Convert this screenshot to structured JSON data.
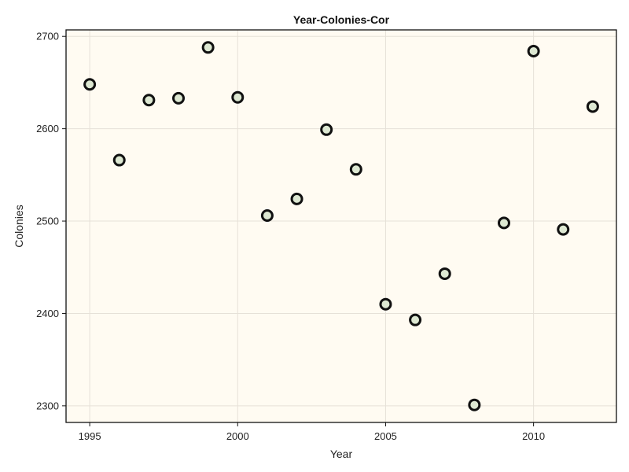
{
  "chart_data": {
    "type": "scatter",
    "title": "Year-Colonies-Cor",
    "xlabel": "Year",
    "ylabel": "Colonies",
    "xlim": [
      1994.2,
      2012.8
    ],
    "ylim": [
      2282,
      2707
    ],
    "x_ticks": [
      1995,
      2000,
      2005,
      2010
    ],
    "y_ticks": [
      2300,
      2400,
      2500,
      2600,
      2700
    ],
    "grid": true,
    "legend": "none",
    "colors": {
      "plot_background": "#fffbf2",
      "marker_fill": "#dde8d2",
      "marker_edge": "#111111",
      "grid": "#e6e1d8",
      "frame": "#111111"
    },
    "points": [
      {
        "x": 1995,
        "y": 2648
      },
      {
        "x": 1996,
        "y": 2566
      },
      {
        "x": 1997,
        "y": 2631
      },
      {
        "x": 1998,
        "y": 2633
      },
      {
        "x": 1999,
        "y": 2688
      },
      {
        "x": 2000,
        "y": 2634
      },
      {
        "x": 2001,
        "y": 2506
      },
      {
        "x": 2002,
        "y": 2524
      },
      {
        "x": 2003,
        "y": 2599
      },
      {
        "x": 2004,
        "y": 2556
      },
      {
        "x": 2005,
        "y": 2410
      },
      {
        "x": 2006,
        "y": 2393
      },
      {
        "x": 2007,
        "y": 2443
      },
      {
        "x": 2008,
        "y": 2301
      },
      {
        "x": 2009,
        "y": 2498
      },
      {
        "x": 2010,
        "y": 2684
      },
      {
        "x": 2011,
        "y": 2491
      },
      {
        "x": 2012,
        "y": 2624
      }
    ]
  }
}
